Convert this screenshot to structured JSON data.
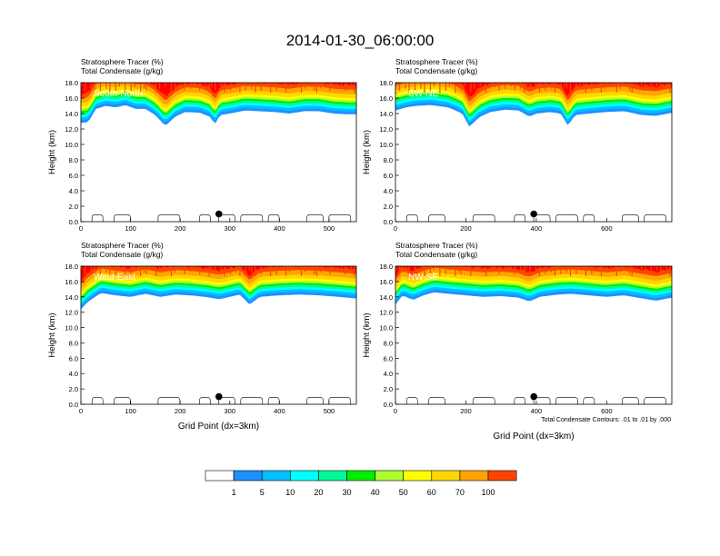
{
  "figure": {
    "title": "2014-01-30_06:00:00",
    "footnote": "Total Condensate Contours: .01 to .01 by .000"
  },
  "palette": {
    "levels": [
      "1",
      "5",
      "10",
      "20",
      "30",
      "40",
      "50",
      "60",
      "70",
      "100"
    ],
    "colors": [
      "#ffffff",
      "#1e90ff",
      "#00bfff",
      "#00ffff",
      "#00fa9a",
      "#00ee00",
      "#adff2f",
      "#ffff00",
      "#ffd700",
      "#ffa500",
      "#ff4500",
      "#ff0000"
    ]
  },
  "chart_data": [
    {
      "type": "heatmap",
      "title": "South-North",
      "subtitle_lines": [
        "Stratosphere Tracer   (%)",
        "Total Condensate   (g/kg)"
      ],
      "xlabel": "",
      "ylabel": "Height (km)",
      "xlim": [
        0,
        555
      ],
      "ylim": [
        0,
        18
      ],
      "xticks": [
        "0",
        "100",
        "200",
        "300",
        "400",
        "500"
      ],
      "yticks": [
        "0.0",
        "2.0",
        "4.0",
        "6.0",
        "8.0",
        "10.0",
        "12.0",
        "14.0",
        "16.0",
        "18.0"
      ],
      "tracer_base_km": [
        [
          0,
          12.8
        ],
        [
          15,
          12.9
        ],
        [
          30,
          14.6
        ],
        [
          50,
          15.0
        ],
        [
          70,
          14.8
        ],
        [
          90,
          15.1
        ],
        [
          110,
          14.6
        ],
        [
          130,
          14.6
        ],
        [
          150,
          13.8
        ],
        [
          170,
          12.4
        ],
        [
          190,
          13.6
        ],
        [
          210,
          14.2
        ],
        [
          240,
          14.1
        ],
        [
          260,
          13.6
        ],
        [
          270,
          12.6
        ],
        [
          280,
          13.8
        ],
        [
          300,
          14.0
        ],
        [
          330,
          14.4
        ],
        [
          360,
          14.3
        ],
        [
          390,
          14.2
        ],
        [
          420,
          14.0
        ],
        [
          450,
          14.3
        ],
        [
          480,
          14.3
        ],
        [
          510,
          14.0
        ],
        [
          540,
          13.9
        ],
        [
          555,
          13.9
        ]
      ],
      "marker_x": 278
    },
    {
      "type": "heatmap",
      "title": "SW-NE",
      "subtitle_lines": [
        "Stratosphere Tracer   (%)",
        "Total Condensate   (g/kg)"
      ],
      "xlabel": "",
      "ylabel": "Height (km)",
      "xlim": [
        0,
        785
      ],
      "ylim": [
        0,
        18
      ],
      "xticks": [
        "0",
        "200",
        "400",
        "600"
      ],
      "yticks": [
        "0.0",
        "2.0",
        "4.0",
        "6.0",
        "8.0",
        "10.0",
        "12.0",
        "14.0",
        "16.0",
        "18.0"
      ],
      "tracer_base_km": [
        [
          0,
          14.4
        ],
        [
          30,
          14.8
        ],
        [
          60,
          15.0
        ],
        [
          100,
          15.1
        ],
        [
          150,
          14.8
        ],
        [
          190,
          14.0
        ],
        [
          210,
          12.3
        ],
        [
          240,
          13.6
        ],
        [
          270,
          14.2
        ],
        [
          310,
          14.5
        ],
        [
          350,
          14.4
        ],
        [
          380,
          13.6
        ],
        [
          400,
          14.0
        ],
        [
          440,
          14.2
        ],
        [
          470,
          14.0
        ],
        [
          490,
          12.4
        ],
        [
          510,
          13.8
        ],
        [
          550,
          14.0
        ],
        [
          600,
          14.2
        ],
        [
          650,
          14.3
        ],
        [
          700,
          13.8
        ],
        [
          740,
          13.7
        ],
        [
          785,
          14.1
        ]
      ],
      "marker_x": 393
    },
    {
      "type": "heatmap",
      "title": "West-East",
      "subtitle_lines": [
        "Stratosphere Tracer   (%)",
        "Total Condensate   (g/kg)"
      ],
      "xlabel": "Grid Point (dx=3km)",
      "ylabel": "Height (km)",
      "xlim": [
        0,
        555
      ],
      "ylim": [
        0,
        18
      ],
      "xticks": [
        "0",
        "100",
        "200",
        "300",
        "400",
        "500"
      ],
      "yticks": [
        "0.0",
        "2.0",
        "4.0",
        "6.0",
        "8.0",
        "10.0",
        "12.0",
        "14.0",
        "16.0",
        "18.0"
      ],
      "tracer_base_km": [
        [
          0,
          12.4
        ],
        [
          15,
          13.4
        ],
        [
          40,
          14.5
        ],
        [
          70,
          14.2
        ],
        [
          100,
          14.0
        ],
        [
          130,
          14.4
        ],
        [
          160,
          14.0
        ],
        [
          190,
          14.3
        ],
        [
          220,
          14.2
        ],
        [
          250,
          14.0
        ],
        [
          280,
          13.7
        ],
        [
          300,
          14.0
        ],
        [
          320,
          14.3
        ],
        [
          340,
          13.0
        ],
        [
          360,
          14.0
        ],
        [
          400,
          14.2
        ],
        [
          440,
          14.3
        ],
        [
          480,
          14.2
        ],
        [
          520,
          14.0
        ],
        [
          555,
          13.8
        ]
      ],
      "marker_x": 278
    },
    {
      "type": "heatmap",
      "title": "NW-SE",
      "subtitle_lines": [
        "Stratosphere Tracer   (%)",
        "Total Condensate   (g/kg)"
      ],
      "xlabel": "Grid Point (dx=3km)",
      "ylabel": "Height (km)",
      "xlim": [
        0,
        785
      ],
      "ylim": [
        0,
        18
      ],
      "xticks": [
        "0",
        "200",
        "400",
        "600"
      ],
      "yticks": [
        "0.0",
        "2.0",
        "4.0",
        "6.0",
        "8.0",
        "10.0",
        "12.0",
        "14.0",
        "16.0",
        "18.0"
      ],
      "tracer_base_km": [
        [
          0,
          13.0
        ],
        [
          20,
          14.2
        ],
        [
          50,
          13.6
        ],
        [
          80,
          14.2
        ],
        [
          110,
          14.6
        ],
        [
          150,
          14.4
        ],
        [
          200,
          14.2
        ],
        [
          250,
          14.0
        ],
        [
          300,
          14.1
        ],
        [
          350,
          13.9
        ],
        [
          380,
          13.4
        ],
        [
          410,
          14.0
        ],
        [
          460,
          14.3
        ],
        [
          500,
          14.4
        ],
        [
          550,
          14.2
        ],
        [
          600,
          14.0
        ],
        [
          650,
          14.2
        ],
        [
          700,
          13.8
        ],
        [
          740,
          13.5
        ],
        [
          785,
          13.9
        ]
      ],
      "marker_x": 393
    }
  ]
}
